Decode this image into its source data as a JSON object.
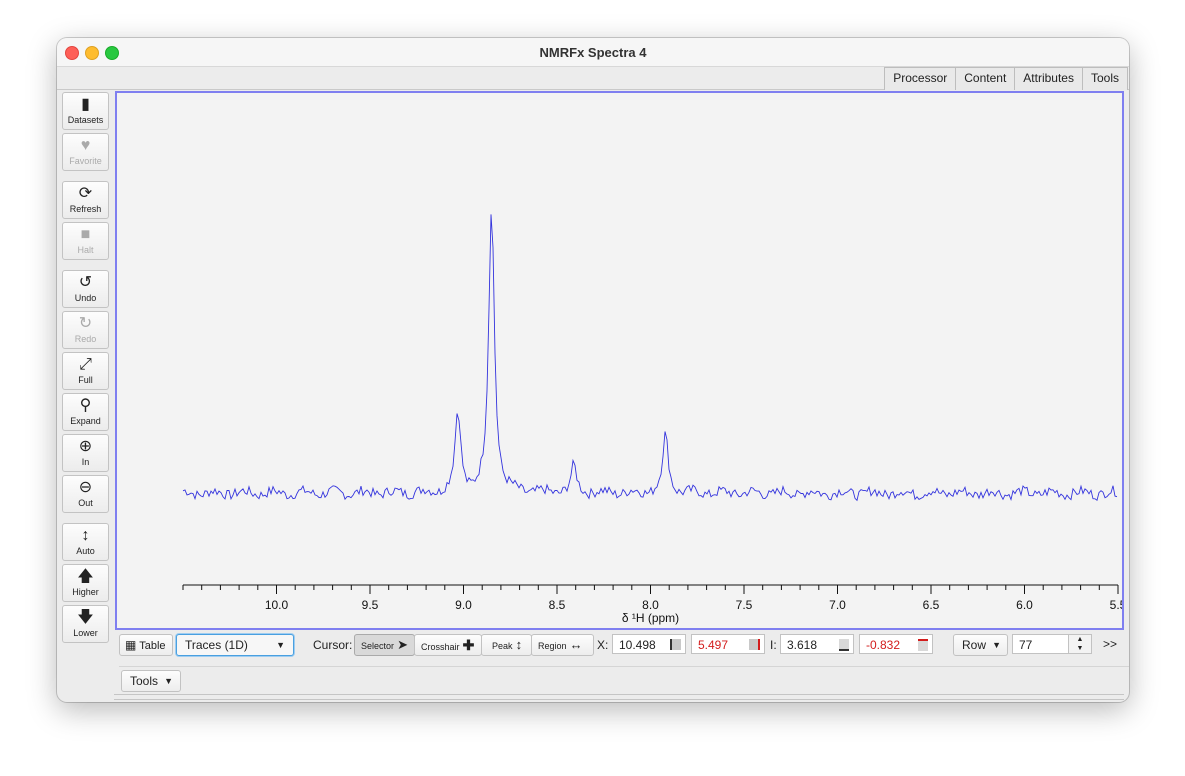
{
  "window": {
    "title": "NMRFx Spectra 4"
  },
  "top_tabs": [
    "Processor",
    "Content",
    "Attributes",
    "Tools"
  ],
  "sidebar": [
    {
      "label": "Datasets",
      "icon": "file-icon",
      "glyph": "▮",
      "enabled": true
    },
    {
      "label": "Favorite",
      "icon": "heart-icon",
      "glyph": "♥",
      "enabled": false
    },
    {
      "label": "Refresh",
      "icon": "refresh-icon",
      "glyph": "⟳",
      "enabled": true
    },
    {
      "label": "Halt",
      "icon": "stop-icon",
      "glyph": "■",
      "enabled": false
    },
    {
      "label": "Undo",
      "icon": "undo-icon",
      "glyph": "↺",
      "enabled": true
    },
    {
      "label": "Redo",
      "icon": "redo-icon",
      "glyph": "↻",
      "enabled": false
    },
    {
      "label": "Full",
      "icon": "expand-arrows-icon",
      "glyph": "⤢",
      "enabled": true
    },
    {
      "label": "Expand",
      "icon": "search-icon",
      "glyph": "⚲",
      "enabled": true
    },
    {
      "label": "In",
      "icon": "zoom-in-icon",
      "glyph": "⊕",
      "enabled": true
    },
    {
      "label": "Out",
      "icon": "zoom-out-icon",
      "glyph": "⊖",
      "enabled": true
    },
    {
      "label": "Auto",
      "icon": "vertical-arrows-icon",
      "glyph": "↕",
      "enabled": true
    },
    {
      "label": "Higher",
      "icon": "arrow-up-icon",
      "glyph": "🡅",
      "enabled": true
    },
    {
      "label": "Lower",
      "icon": "arrow-down-icon",
      "glyph": "🡇",
      "enabled": true
    }
  ],
  "spectrum": {
    "xlabel": "δ ¹H (ppm)",
    "ticks": [
      "10.0",
      "9.5",
      "9.0",
      "8.5",
      "8.0",
      "7.5",
      "7.0",
      "6.5",
      "6.0",
      "5.5"
    ],
    "x_range_ppm": [
      10.5,
      5.5
    ],
    "line_color": "#3333dd",
    "peaks_ppm": [
      {
        "center": 8.85,
        "height": 1.0
      },
      {
        "center": 9.03,
        "height": 0.28
      },
      {
        "center": 7.92,
        "height": 0.2
      },
      {
        "center": 8.41,
        "height": 0.09
      }
    ]
  },
  "bottom": {
    "table_label": "Table",
    "mode_select": "Traces (1D)",
    "cursor_label": "Cursor:",
    "cursor_modes": [
      "Selector",
      "Crosshair",
      "Peak",
      "Region"
    ],
    "x_label": "X:",
    "x1": "10.498",
    "x2": "5.497",
    "i_label": "I:",
    "i1": "3.618",
    "i2": "-0.832",
    "row_label": "Row",
    "row_value": "77",
    "overflow": ">>"
  },
  "tools_menu": "Tools"
}
